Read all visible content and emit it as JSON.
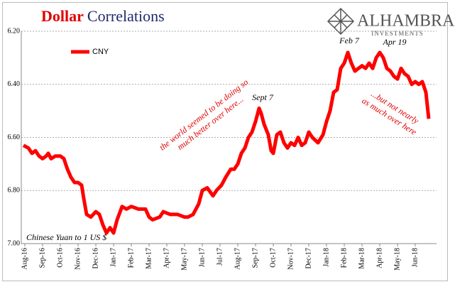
{
  "chart_data": {
    "type": "line",
    "title_parts": [
      "Dollar",
      "Correlations"
    ],
    "logo": [
      "ALHAMBRA",
      "INVESTMENTS"
    ],
    "axis_note": "Chinese Yuan to 1 US $",
    "annotations": [
      "Sept 7",
      "Feb 7",
      "Apr 19"
    ],
    "note_left": [
      "the world seemed to be doing so",
      "much better over here..."
    ],
    "note_right": [
      "...but not nearly",
      "as much over here"
    ],
    "legend": "top-left",
    "grid": true,
    "ylim": [
      7.0,
      6.2
    ],
    "yticks": [
      {
        "value": 6.2,
        "label": "6.20"
      },
      {
        "value": 6.4,
        "label": "6.40"
      },
      {
        "value": 6.6,
        "label": "6.60"
      },
      {
        "value": 6.8,
        "label": "6.80"
      },
      {
        "value": 7.0,
        "label": "7.00"
      }
    ],
    "xlim": [
      -0.2,
      23.2
    ],
    "xticks": [
      {
        "value": 0,
        "label": "Aug-16"
      },
      {
        "value": 1,
        "label": "Sep-16"
      },
      {
        "value": 2,
        "label": "Oct-16"
      },
      {
        "value": 3,
        "label": "Nov-16"
      },
      {
        "value": 4,
        "label": "Dec-16"
      },
      {
        "value": 5,
        "label": "Jan-17"
      },
      {
        "value": 6,
        "label": "Feb-17"
      },
      {
        "value": 7,
        "label": "Mar-17"
      },
      {
        "value": 8,
        "label": "Apr-17"
      },
      {
        "value": 9,
        "label": "May-17"
      },
      {
        "value": 10,
        "label": "Jun-17"
      },
      {
        "value": 11,
        "label": "Jul-17"
      },
      {
        "value": 12,
        "label": "Aug-17"
      },
      {
        "value": 13,
        "label": "Sep-17"
      },
      {
        "value": 14,
        "label": "Oct-17"
      },
      {
        "value": 15,
        "label": "Nov-17"
      },
      {
        "value": 16,
        "label": "Dec-17"
      },
      {
        "value": 17,
        "label": "Jan-18"
      },
      {
        "value": 18,
        "label": "Feb-18"
      },
      {
        "value": 19,
        "label": "Mar-18"
      },
      {
        "value": 20,
        "label": "Apr-18"
      },
      {
        "value": 21,
        "label": "May-18"
      },
      {
        "value": 22,
        "label": "Jun-18"
      }
    ],
    "x": [
      -0.08,
      0.2,
      0.4,
      0.6,
      0.8,
      1.0,
      1.2,
      1.32,
      1.48,
      1.72,
      2.0,
      2.2,
      2.4,
      2.6,
      2.8,
      3.0,
      3.2,
      3.32,
      3.48,
      3.72,
      4.0,
      4.2,
      4.4,
      4.6,
      4.8,
      5.0,
      5.2,
      5.48,
      5.72,
      6.0,
      6.4,
      6.8,
      7.0,
      7.2,
      7.6,
      7.8,
      8.2,
      8.6,
      9.0,
      9.2,
      9.48,
      9.8,
      10.0,
      10.28,
      10.6,
      10.8,
      11.08,
      11.32,
      11.6,
      11.8,
      12.0,
      12.2,
      12.4,
      12.6,
      12.8,
      13.0,
      13.2,
      13.32,
      13.48,
      13.72,
      13.88,
      14.0,
      14.2,
      14.4,
      14.6,
      14.8,
      15.0,
      15.2,
      15.4,
      15.6,
      15.8,
      16.0,
      16.2,
      16.52,
      16.8,
      17.0,
      17.2,
      17.4,
      17.6,
      17.8,
      18.0,
      18.2,
      18.4,
      18.6,
      18.8,
      19.0,
      19.2,
      19.4,
      19.6,
      19.8,
      20.0,
      20.2,
      20.4,
      20.6,
      20.8,
      21.0,
      21.2,
      21.4,
      21.6,
      21.8,
      22.0,
      22.2,
      22.4,
      22.6,
      22.76
    ],
    "series": [
      {
        "name": "CNY",
        "color": "#ff0000",
        "values": [
          6.63,
          6.64,
          6.66,
          6.65,
          6.67,
          6.68,
          6.67,
          6.66,
          6.68,
          6.67,
          6.67,
          6.68,
          6.72,
          6.75,
          6.77,
          6.77,
          6.78,
          6.83,
          6.89,
          6.9,
          6.88,
          6.89,
          6.93,
          6.96,
          6.94,
          6.96,
          6.91,
          6.86,
          6.87,
          6.86,
          6.87,
          6.87,
          6.9,
          6.91,
          6.9,
          6.88,
          6.89,
          6.89,
          6.9,
          6.9,
          6.89,
          6.85,
          6.8,
          6.79,
          6.82,
          6.8,
          6.78,
          6.75,
          6.72,
          6.72,
          6.7,
          6.66,
          6.64,
          6.6,
          6.58,
          6.54,
          6.49,
          6.51,
          6.55,
          6.59,
          6.65,
          6.66,
          6.59,
          6.58,
          6.62,
          6.64,
          6.62,
          6.63,
          6.6,
          6.63,
          6.62,
          6.58,
          6.6,
          6.62,
          6.59,
          6.54,
          6.5,
          6.43,
          6.42,
          6.34,
          6.32,
          6.28,
          6.32,
          6.35,
          6.34,
          6.33,
          6.34,
          6.32,
          6.34,
          6.3,
          6.28,
          6.3,
          6.34,
          6.35,
          6.37,
          6.38,
          6.34,
          6.36,
          6.37,
          6.4,
          6.39,
          6.4,
          6.39,
          6.43,
          6.53
        ]
      }
    ]
  }
}
